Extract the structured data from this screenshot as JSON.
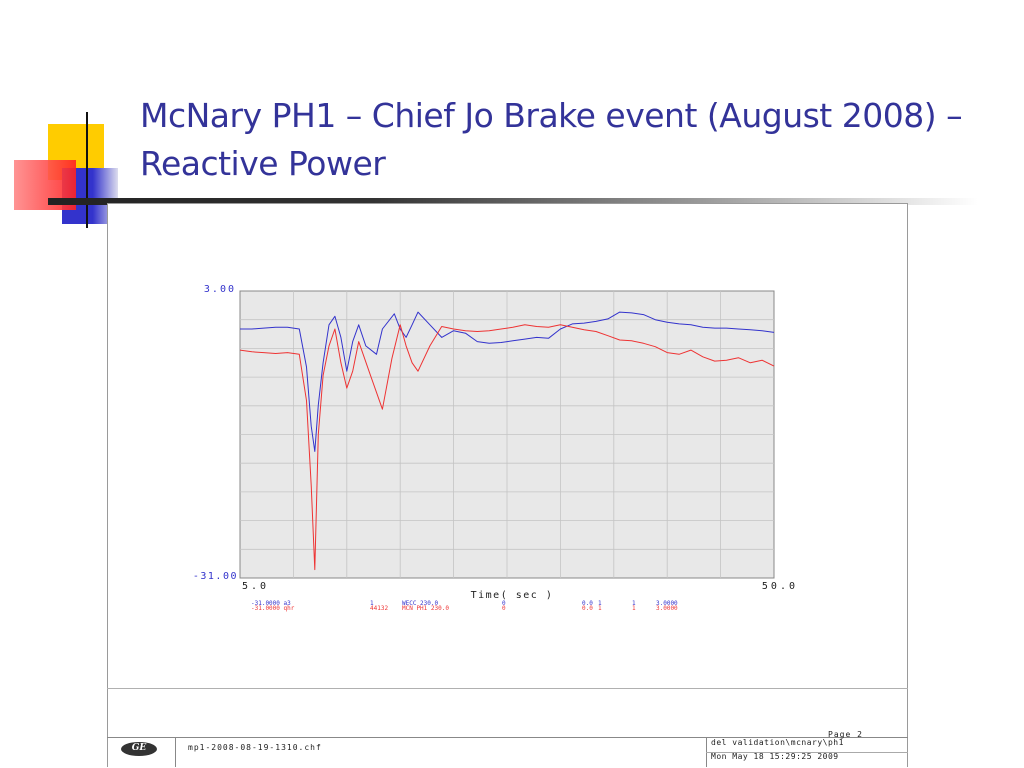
{
  "slide": {
    "title": "McNary PH1  – Chief Jo Brake event (August 2008) – Reactive Power",
    "colors": {
      "title": "#333399",
      "accent_yellow": "#ffcc00",
      "accent_red": "#ff3333",
      "accent_blue": "#3333cc"
    }
  },
  "chart_data": {
    "type": "line",
    "title": "",
    "xlabel": "Time( sec )",
    "ylabel": "",
    "xlim": [
      5.0,
      50.0
    ],
    "ylim": [
      -31.0,
      3.0
    ],
    "x_tick_labels": [
      "5.0",
      "50.0"
    ],
    "y_tick_labels": [
      "3.00",
      "-31.00"
    ],
    "grid": true,
    "plot_background": "#e8e8e8",
    "series": [
      {
        "color": "#3333cc",
        "x": [
          5.0,
          6.0,
          7.0,
          8.0,
          9.0,
          10.0,
          10.6,
          11.0,
          11.3,
          11.6,
          12.0,
          12.5,
          13.0,
          13.5,
          14.0,
          14.5,
          15.0,
          15.6,
          16.5,
          17.0,
          18.0,
          18.5,
          19.0,
          19.5,
          20.0,
          21.0,
          22.0,
          23.0,
          24.0,
          25.0,
          26.0,
          27.0,
          28.0,
          29.0,
          30.0,
          31.0,
          32.0,
          33.0,
          34.0,
          35.0,
          36.0,
          37.0,
          38.0,
          39.0,
          40.0,
          41.0,
          42.0,
          43.0,
          44.0,
          45.0,
          46.0,
          47.0,
          48.0,
          49.0,
          50.0
        ],
        "y": [
          -1.5,
          -1.5,
          -1.4,
          -1.3,
          -1.3,
          -1.5,
          -6.0,
          -13.0,
          -16.0,
          -10.5,
          -5.5,
          -1.0,
          0.0,
          -2.5,
          -6.5,
          -3.0,
          -1.0,
          -3.5,
          -4.5,
          -1.5,
          0.3,
          -1.5,
          -2.5,
          -1.0,
          0.5,
          -1.0,
          -2.5,
          -1.7,
          -2.0,
          -3.0,
          -3.2,
          -3.1,
          -2.9,
          -2.7,
          -2.5,
          -2.6,
          -1.5,
          -0.9,
          -0.8,
          -0.6,
          -0.3,
          0.5,
          0.4,
          0.2,
          -0.4,
          -0.7,
          -0.9,
          -1.0,
          -1.3,
          -1.4,
          -1.4,
          -1.5,
          -1.6,
          -1.7,
          -1.9
        ]
      },
      {
        "color": "#ee3333",
        "x": [
          5.0,
          6.0,
          7.0,
          8.0,
          9.0,
          10.0,
          10.6,
          11.0,
          11.3,
          11.6,
          12.0,
          12.5,
          13.0,
          13.5,
          14.0,
          14.5,
          15.0,
          16.0,
          17.0,
          17.8,
          18.5,
          19.0,
          19.5,
          20.0,
          21.0,
          22.0,
          23.0,
          24.0,
          25.0,
          26.0,
          27.0,
          28.0,
          29.0,
          30.0,
          31.0,
          32.0,
          33.0,
          34.0,
          35.0,
          36.0,
          37.0,
          38.0,
          39.0,
          40.0,
          41.0,
          42.0,
          43.0,
          44.0,
          45.0,
          46.0,
          47.0,
          48.0,
          49.0,
          50.0
        ],
        "y": [
          -4.0,
          -4.2,
          -4.3,
          -4.4,
          -4.3,
          -4.5,
          -10.0,
          -20.0,
          -30.0,
          -14.0,
          -7.0,
          -3.5,
          -1.5,
          -5.5,
          -8.5,
          -6.5,
          -3.0,
          -7.0,
          -11.0,
          -5.0,
          -1.0,
          -3.5,
          -5.5,
          -6.5,
          -3.5,
          -1.2,
          -1.5,
          -1.7,
          -1.8,
          -1.7,
          -1.5,
          -1.3,
          -1.0,
          -1.2,
          -1.3,
          -1.0,
          -1.3,
          -1.6,
          -1.8,
          -2.3,
          -2.8,
          -2.9,
          -3.2,
          -3.6,
          -4.3,
          -4.5,
          -4.0,
          -4.8,
          -5.3,
          -5.2,
          -4.9,
          -5.5,
          -5.2,
          -5.9
        ]
      }
    ],
    "legend_rows": [
      {
        "color": "#3333cc",
        "cols": [
          "-31.0000 a3",
          "1",
          "WECC 230.0",
          "0",
          "0.0",
          "1",
          "1",
          "3.0000"
        ]
      },
      {
        "color": "#ee3333",
        "cols": [
          "-31.0000 qhr",
          "44132",
          "MCN PH1 230.0",
          "0",
          "0.0",
          "1",
          "1",
          "3.0000"
        ]
      }
    ]
  },
  "footer": {
    "page_label": "Page 2",
    "filename": "mp1-2008-08-19-1310.chf",
    "path": "del validation\\mcnary\\ph1",
    "datetime": "Mon May 18 15:29:25 2009",
    "logo_text": "GE"
  }
}
